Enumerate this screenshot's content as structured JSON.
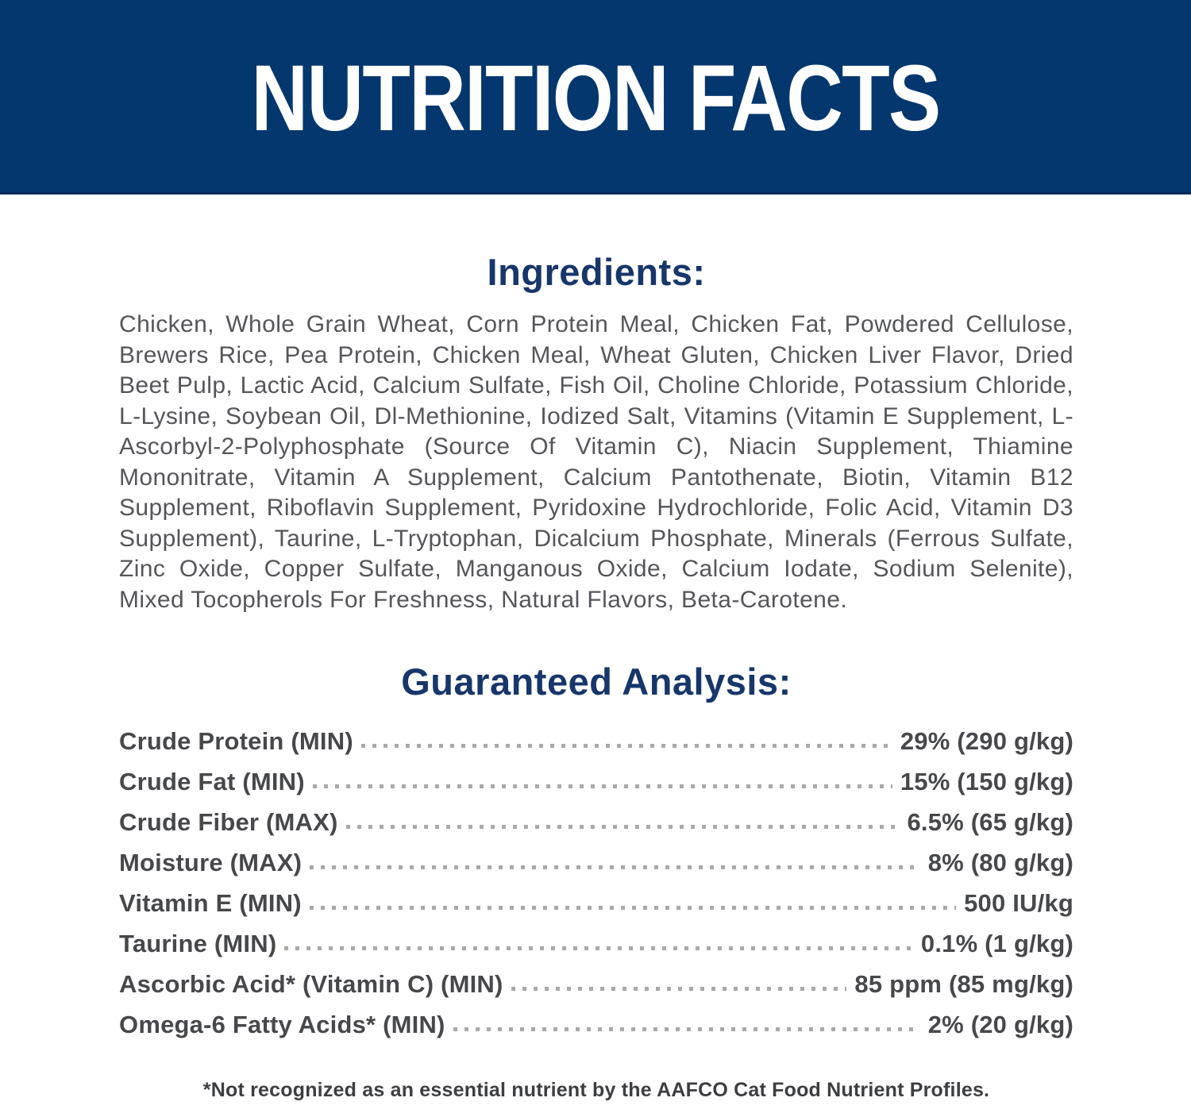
{
  "colors": {
    "banner_bg": "#04376e",
    "heading_navy": "#17366b",
    "body_gray": "#55565a",
    "table_gray": "#47484b",
    "leader_dots": "#a9a9a9"
  },
  "banner": {
    "title": "NUTRITION FACTS"
  },
  "ingredients": {
    "heading": "Ingredients:",
    "text": "Chicken, Whole Grain Wheat, Corn Protein Meal, Chicken Fat, Powdered Cellulose, Brewers Rice, Pea Protein, Chicken Meal, Wheat Gluten, Chicken Liver Flavor, Dried Beet Pulp, Lactic Acid, Calcium Sulfate, Fish Oil, Choline Chloride, Potassium Chloride, L-Lysine, Soybean Oil, Dl-Methionine, Iodized Salt, Vitamins (Vitamin E Supplement, L-Ascorbyl-2-Polyphosphate (Source Of Vitamin C), Niacin Supplement, Thiamine Mononitrate, Vitamin A Supplement, Calcium Pantothenate, Biotin, Vitamin B12 Supplement, Riboflavin Supplement, Pyridoxine Hydrochloride, Folic Acid, Vitamin D3 Supplement), Taurine, L-Tryptophan, Dicalcium Phosphate, Minerals (Ferrous Sulfate, Zinc Oxide, Copper Sulfate, Manganous Oxide, Calcium Iodate, Sodium Selenite), Mixed Tocopherols For Freshness, Natural Flavors, Beta-Carotene."
  },
  "guaranteed_analysis": {
    "heading": "Guaranteed Analysis:",
    "rows": [
      {
        "label": "Crude Protein (MIN)",
        "value": "29% (290 g/kg)"
      },
      {
        "label": "Crude Fat (MIN)",
        "value": "15% (150 g/kg)"
      },
      {
        "label": "Crude Fiber (MAX)",
        "value": "6.5% (65 g/kg)"
      },
      {
        "label": "Moisture (MAX)",
        "value": "8% (80 g/kg)"
      },
      {
        "label": "Vitamin E (MIN)",
        "value": "500 IU/kg"
      },
      {
        "label": "Taurine (MIN)",
        "value": "0.1% (1 g/kg)"
      },
      {
        "label": "Ascorbic Acid* (Vitamin C) (MIN)",
        "value": "85 ppm (85 mg/kg)"
      },
      {
        "label": "Omega-6 Fatty Acids* (MIN)",
        "value": "2% (20 g/kg)"
      }
    ]
  },
  "footnote": "*Not recognized as an essential nutrient by the AAFCO Cat Food Nutrient Profiles."
}
